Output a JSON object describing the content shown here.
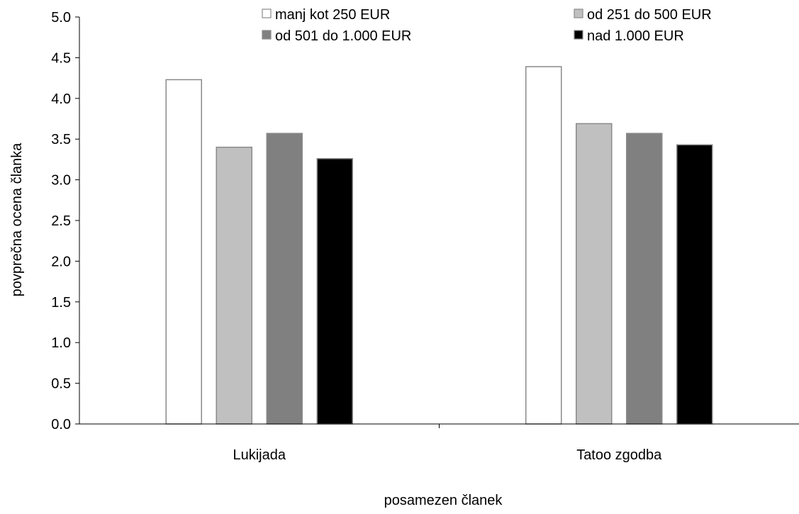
{
  "chart_data": {
    "type": "bar",
    "xlabel": "posamezen članek",
    "ylabel": "povprečna ocena članka",
    "ylim": [
      0,
      5
    ],
    "y_ticks": [
      "0.0",
      "0.5",
      "1.0",
      "1.5",
      "2.0",
      "2.5",
      "3.0",
      "3.5",
      "4.0",
      "4.5",
      "5.0"
    ],
    "grid": false,
    "legend_position": "top",
    "categories": [
      "Lukijada",
      "Tatoo zgodba"
    ],
    "series": [
      {
        "name": "manj kot 250 EUR",
        "color": "#ffffff",
        "values": [
          4.23,
          4.39
        ]
      },
      {
        "name": "od 251 do 500 EUR",
        "color": "#c0c0c0",
        "values": [
          3.4,
          3.69
        ]
      },
      {
        "name": "od 501 do 1.000 EUR",
        "color": "#808080",
        "values": [
          3.57,
          3.57
        ]
      },
      {
        "name": "nad 1.000 EUR",
        "color": "#000000",
        "values": [
          3.26,
          3.43
        ]
      }
    ]
  }
}
